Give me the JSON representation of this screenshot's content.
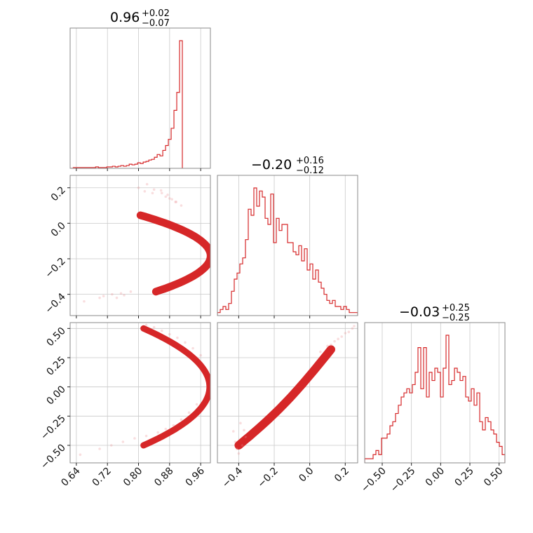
{
  "chart_data": {
    "type": "corner",
    "color": "#d62728",
    "grid": true,
    "parameters": [
      {
        "title_main": "0.96",
        "title_sup": "+0.02",
        "title_sub": "−0.07",
        "range": [
          0.624,
          0.985
        ],
        "ticks": [
          0.64,
          0.72,
          0.8,
          0.88,
          0.96
        ],
        "tick_labels": [
          "0.64",
          "0.72",
          "0.80",
          "0.88",
          "0.96"
        ]
      },
      {
        "title_main": "−0.20",
        "title_sup": "+0.16",
        "title_sub": "−0.12",
        "range": [
          -0.52,
          0.27
        ],
        "ticks": [
          -0.4,
          -0.2,
          0.0,
          0.2
        ],
        "tick_labels": [
          "−0.4",
          "−0.2",
          "0.0",
          "0.2"
        ],
        "y_tick_labels": [
          "−0.4",
          "−0.2",
          "0.0",
          "0.2"
        ]
      },
      {
        "title_main": "−0.03",
        "title_sup": "+0.25",
        "title_sub": "−0.25",
        "range": [
          -0.65,
          0.55
        ],
        "ticks": [
          -0.5,
          -0.25,
          0.0,
          0.25,
          0.5
        ],
        "tick_labels": [
          "−0.50",
          "−0.25",
          "0.00",
          "0.25",
          "0.50"
        ],
        "y_tick_labels": [
          "−0.50",
          "−0.25",
          "0.00",
          "0.25",
          "0.50"
        ]
      }
    ],
    "hist_1": {
      "bin_start": 0.6248,
      "bin_width": 0.0072,
      "counts": [
        0,
        1,
        1,
        1,
        1,
        1,
        1,
        1,
        1,
        2,
        1,
        1,
        1,
        2,
        2,
        3,
        2,
        3,
        4,
        3,
        4,
        6,
        5,
        6,
        8,
        7,
        9,
        10,
        12,
        13,
        16,
        20,
        18,
        26,
        33,
        42,
        58,
        84,
        110,
        185
      ]
    },
    "hist_2": {
      "bin_start": -0.52,
      "bin_width": 0.0158,
      "counts": [
        1,
        2,
        3,
        2,
        4,
        8,
        12,
        14,
        17,
        19,
        25,
        35,
        33,
        42,
        36,
        41,
        39,
        32,
        30,
        40,
        24,
        32,
        28,
        30,
        30,
        24,
        24,
        21,
        20,
        23,
        18,
        22,
        15,
        17,
        12,
        15,
        11,
        9,
        7,
        5,
        4,
        5,
        3,
        3,
        2,
        3,
        2,
        1,
        1,
        1
      ]
    },
    "hist_3": {
      "bin_start": -0.65,
      "bin_width": 0.024,
      "counts": [
        1,
        1,
        1,
        2,
        3,
        2,
        6,
        6,
        7,
        9,
        10,
        12,
        14,
        16,
        17,
        18,
        17,
        19,
        22,
        28,
        18,
        28,
        16,
        22,
        20,
        23,
        22,
        16,
        23,
        31,
        19,
        20,
        23,
        22,
        20,
        21,
        16,
        15,
        18,
        14,
        17,
        10,
        8,
        11,
        10,
        8,
        7,
        5,
        4,
        2
      ]
    },
    "scatter_1_2": {
      "x": [
        0.71,
        0.732,
        0.755,
        0.78,
        0.8,
        0.816,
        0.87,
        0.886,
        0.895,
        0.91,
        0.84,
        0.86,
        0.875,
        0.66,
        0.7,
        0.744,
        0.763,
        0.822,
        0.836,
        0.858,
        0.88,
        0.897
      ],
      "y": [
        -0.41,
        -0.4,
        -0.395,
        -0.385,
        0.2,
        0.18,
        0.15,
        0.135,
        0.12,
        0.1,
        0.19,
        0.17,
        0.16,
        -0.44,
        -0.42,
        -0.42,
        -0.405,
        0.22,
        0.17,
        0.185,
        0.14,
        0.12
      ]
    },
    "scatter_1_3": {
      "x": [
        0.65,
        0.7,
        0.73,
        0.76,
        0.79,
        0.82,
        0.84,
        0.86,
        0.88,
        0.9,
        0.92,
        0.94,
        0.96,
        0.82,
        0.85,
        0.87,
        0.89,
        0.91,
        0.93,
        0.95
      ],
      "y": [
        -0.58,
        -0.53,
        -0.5,
        -0.47,
        -0.44,
        0.53,
        0.51,
        0.48,
        0.45,
        0.42,
        0.38,
        0.33,
        0.27,
        -0.42,
        -0.39,
        -0.36,
        -0.33,
        -0.28,
        -0.22,
        -0.15
      ]
    },
    "scatter_2_3": {
      "x": [
        -0.43,
        -0.42,
        -0.41,
        -0.4,
        -0.38,
        -0.36,
        0.06,
        0.1,
        0.14,
        0.18,
        0.22,
        0.25,
        -0.39,
        -0.37,
        0.12,
        0.16,
        0.2,
        0.24
      ],
      "y": [
        -0.38,
        -0.47,
        -0.53,
        -0.57,
        -0.5,
        -0.43,
        0.3,
        0.35,
        0.39,
        0.43,
        0.47,
        0.52,
        -0.31,
        -0.37,
        0.36,
        0.41,
        0.46,
        0.5
      ]
    }
  }
}
